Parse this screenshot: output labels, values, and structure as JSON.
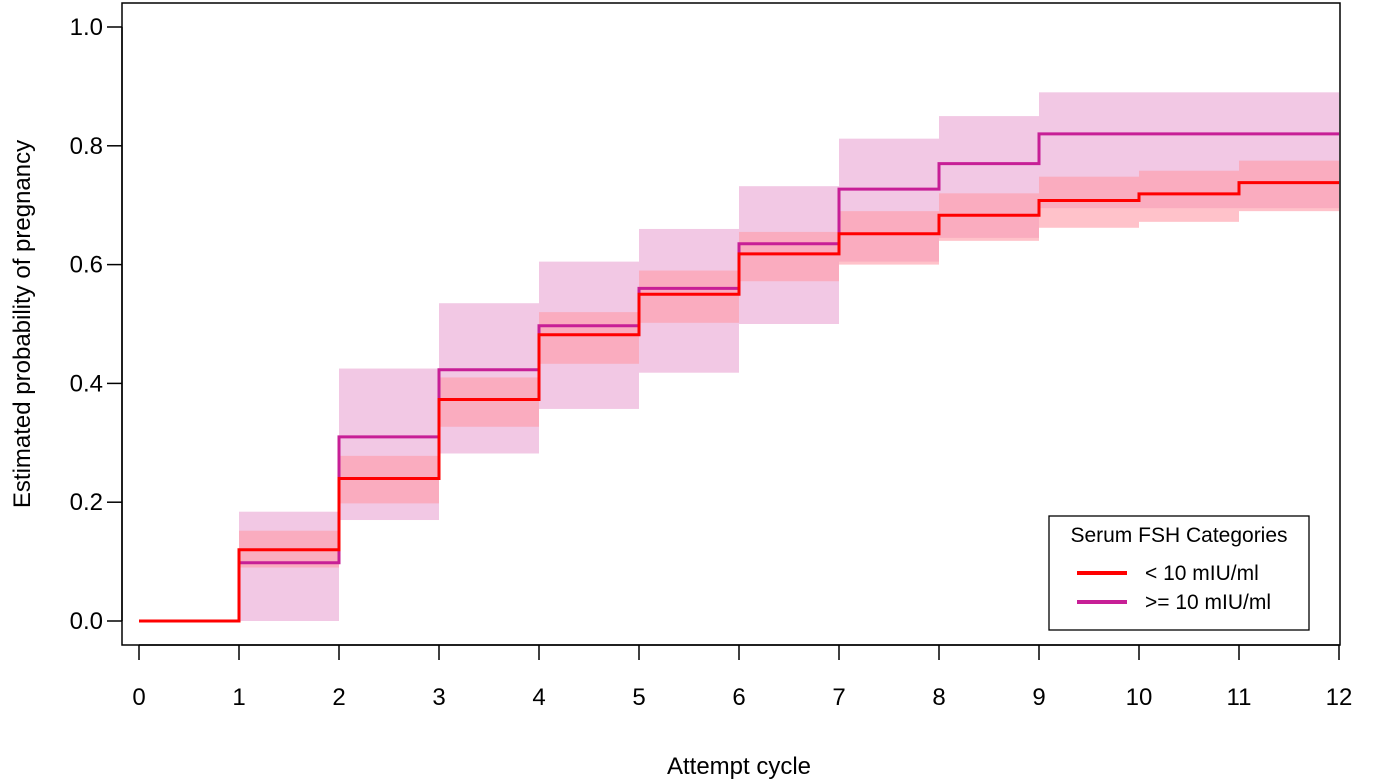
{
  "chart_data": {
    "type": "line",
    "title": "",
    "xlabel": "Attempt cycle",
    "ylabel": "Estimated probability of pregnancy",
    "xlim": [
      0,
      12
    ],
    "ylim": [
      0,
      1.0
    ],
    "x_ticks": [
      0,
      1,
      2,
      3,
      4,
      5,
      6,
      7,
      8,
      9,
      10,
      11,
      12
    ],
    "x_tick_labels": [
      "0",
      "1",
      "2",
      "3",
      "4",
      "5",
      "6",
      "7",
      "8",
      "9",
      "10",
      "11",
      "12"
    ],
    "y_ticks": [
      0,
      0.2,
      0.4,
      0.6,
      0.8,
      1.0
    ],
    "y_tick_labels": [
      "0.0",
      "0.2",
      "0.4",
      "0.6",
      "0.8",
      "1.0"
    ],
    "step": true,
    "grid": false,
    "legend": {
      "title": "Serum FSH Categories",
      "position": "bottom-right"
    },
    "series": [
      {
        "name": "< 10 mIU/ml",
        "color": "#ff0000",
        "band_color": "#ff9aa6",
        "x": [
          0,
          1,
          2,
          3,
          4,
          5,
          6,
          7,
          8,
          9,
          10,
          11,
          12
        ],
        "y": [
          0,
          0.12,
          0.24,
          0.373,
          0.482,
          0.55,
          0.618,
          0.652,
          0.683,
          0.708,
          0.719,
          0.738,
          0.738
        ],
        "lower": [
          0,
          0.09,
          0.198,
          0.327,
          0.433,
          0.502,
          0.572,
          0.6,
          0.64,
          0.662,
          0.672,
          0.69,
          0.69
        ],
        "upper": [
          0,
          0.152,
          0.278,
          0.41,
          0.52,
          0.59,
          0.655,
          0.69,
          0.72,
          0.748,
          0.758,
          0.775,
          0.775
        ]
      },
      {
        "name": ">= 10 mIU/ml",
        "color": "#c71f96",
        "band_color": "#e9a3d2",
        "x": [
          0,
          1,
          2,
          3,
          4,
          5,
          6,
          7,
          8,
          9,
          10,
          11,
          12
        ],
        "y": [
          0,
          0.098,
          0.31,
          0.423,
          0.497,
          0.56,
          0.635,
          0.727,
          0.77,
          0.82,
          0.82,
          0.82,
          0.82
        ],
        "lower": [
          0,
          0.0,
          0.17,
          0.282,
          0.357,
          0.418,
          0.5,
          0.605,
          0.645,
          0.695,
          0.695,
          0.695,
          0.695
        ],
        "upper": [
          0,
          0.184,
          0.425,
          0.535,
          0.605,
          0.66,
          0.732,
          0.812,
          0.85,
          0.89,
          0.89,
          0.89,
          0.89
        ]
      }
    ]
  }
}
